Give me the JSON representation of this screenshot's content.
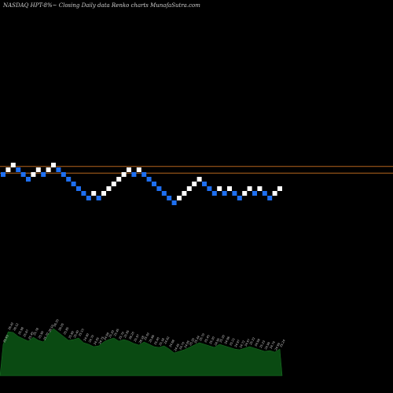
{
  "header": {
    "title": "NASDAQ HPT-8%~  Closing Daily data  Renko  charts MunafaSutra.com"
  },
  "chart_data": {
    "type": "renko",
    "title": "NASDAQ HPT-8%~  Closing Daily data  Renko  charts MunafaSutra.com",
    "brick_levels": [
      0,
      1,
      2,
      1,
      0,
      -1,
      0,
      1,
      0,
      1,
      2,
      1,
      0,
      -1,
      -2,
      -3,
      -4,
      -5,
      -4,
      -5,
      -4,
      -3,
      -2,
      -1,
      0,
      1,
      0,
      1,
      0,
      -1,
      -2,
      -3,
      -4,
      -5,
      -6,
      -5,
      -4,
      -3,
      -2,
      -1,
      -2,
      -3,
      -4,
      -3,
      -4,
      -3,
      -4,
      -5,
      -4,
      -3,
      -4,
      -3,
      -4,
      -5,
      -4,
      -3
    ],
    "brick_directions": [
      "down",
      "up",
      "up",
      "down",
      "down",
      "down",
      "up",
      "up",
      "down",
      "up",
      "up",
      "down",
      "down",
      "down",
      "down",
      "down",
      "down",
      "down",
      "up",
      "down",
      "up",
      "up",
      "up",
      "up",
      "up",
      "up",
      "down",
      "up",
      "down",
      "down",
      "down",
      "down",
      "down",
      "down",
      "down",
      "up",
      "up",
      "up",
      "up",
      "up",
      "down",
      "down",
      "down",
      "up",
      "down",
      "up",
      "down",
      "down",
      "up",
      "up",
      "down",
      "up",
      "down",
      "down",
      "up",
      "up"
    ],
    "reference_lines": [
      {
        "level": 1.7,
        "color": "#b5651d"
      },
      {
        "level": 0.3,
        "color": "#b5651d"
      }
    ],
    "colors": {
      "up": "#ffffff",
      "down": "#1e6ff0",
      "background": "#000000",
      "volume": "#0a4a12"
    },
    "volume_values": [
      40,
      56,
      55,
      50,
      47,
      44,
      49,
      45,
      43,
      53,
      60,
      55,
      50,
      45,
      46,
      48,
      42,
      40,
      37,
      38,
      43,
      46,
      48,
      44,
      46,
      44,
      41,
      39,
      43,
      40,
      37,
      36,
      38,
      34,
      29,
      31,
      33,
      36,
      39,
      42,
      40,
      38,
      36,
      40,
      38,
      36,
      34,
      33,
      35,
      37,
      35,
      33,
      31,
      32,
      30,
      34
    ],
    "volume_labels": [
      "25.93",
      "26.42",
      "26.12",
      "25.98",
      "25.67",
      "25.45",
      "25.78",
      "25.90",
      "25.70",
      "26.10",
      "26.35",
      "26.05",
      "25.85",
      "25.60",
      "25.40",
      "25.15",
      "24.90",
      "24.70",
      "24.95",
      "24.75",
      "24.98",
      "25.20",
      "25.45",
      "25.70",
      "25.95",
      "26.20",
      "25.97",
      "26.18",
      "25.92",
      "25.66",
      "25.40",
      "25.16",
      "24.92",
      "24.68",
      "24.45",
      "24.70",
      "24.95",
      "25.20",
      "25.44",
      "25.70",
      "25.45",
      "25.20",
      "24.95",
      "25.20",
      "24.96",
      "25.21",
      "24.97",
      "24.72",
      "24.97",
      "25.22",
      "24.98",
      "25.23",
      "24.99",
      "24.74",
      "24.99",
      "25.24"
    ]
  }
}
